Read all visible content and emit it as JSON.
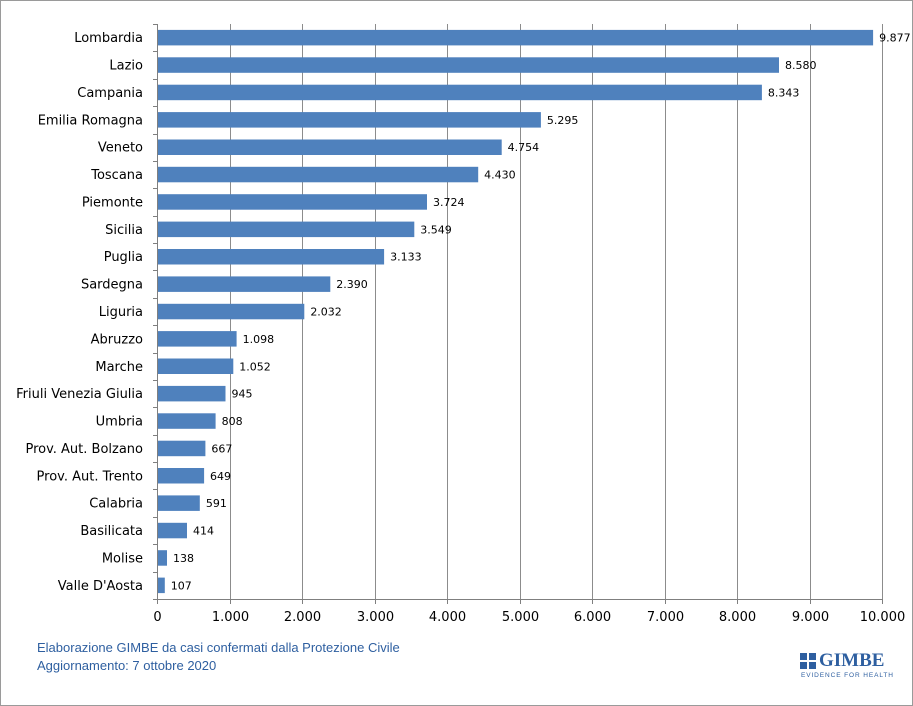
{
  "chart_data": {
    "type": "bar",
    "orientation": "horizontal",
    "categories": [
      "Lombardia",
      "Lazio",
      "Campania",
      "Emilia Romagna",
      "Veneto",
      "Toscana",
      "Piemonte",
      "Sicilia",
      "Puglia",
      "Sardegna",
      "Liguria",
      "Abruzzo",
      "Marche",
      "Friuli Venezia Giulia",
      "Umbria",
      "Prov. Aut. Bolzano",
      "Prov. Aut. Trento",
      "Calabria",
      "Basilicata",
      "Molise",
      "Valle D'Aosta"
    ],
    "values": [
      9877,
      8580,
      8343,
      5295,
      4754,
      4430,
      3724,
      3549,
      3133,
      2390,
      2032,
      1098,
      1052,
      945,
      808,
      667,
      649,
      591,
      414,
      138,
      107
    ],
    "value_labels": [
      "9.877",
      "8.580",
      "8.343",
      "5.295",
      "4.754",
      "4.430",
      "3.724",
      "3.549",
      "3.133",
      "2.390",
      "2.032",
      "1.098",
      "1.052",
      "945",
      "808",
      "667",
      "649",
      "591",
      "414",
      "138",
      "107"
    ],
    "xlim": [
      0,
      10000
    ],
    "x_ticks": [
      0,
      1000,
      2000,
      3000,
      4000,
      5000,
      6000,
      7000,
      8000,
      9000,
      10000
    ],
    "x_tick_labels": [
      "0",
      "1.000",
      "2.000",
      "3.000",
      "4.000",
      "5.000",
      "6.000",
      "7.000",
      "8.000",
      "9.000",
      "10.000"
    ],
    "grid": "vertical",
    "bar_color": "#4f81bd",
    "title": "",
    "xlabel": "",
    "ylabel": ""
  },
  "footer": {
    "line1": "Elaborazione GIMBE da casi confermati dalla Protezione Civile",
    "line2": "Aggiornamento: 7 ottobre 2020"
  },
  "logo": {
    "name": "GIMBE",
    "tagline": "EVIDENCE FOR HEALTH"
  }
}
